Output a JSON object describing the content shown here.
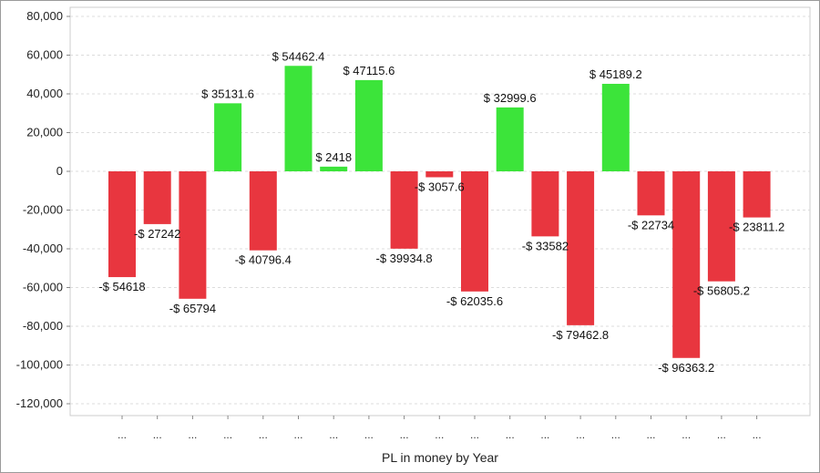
{
  "chart_data": {
    "type": "bar",
    "title": "",
    "xlabel": "PL in money by Year",
    "ylabel": "",
    "ylim": [
      -120000,
      80000
    ],
    "yticks": [
      80000,
      60000,
      40000,
      20000,
      0,
      -20000,
      -40000,
      -60000,
      -80000,
      -100000,
      -120000
    ],
    "ytick_labels": [
      "80,000",
      "60,000",
      "40,000",
      "20,000",
      "0",
      "-20,000",
      "-40,000",
      "-60,000",
      "-80,000",
      "-100,000",
      "-120,000"
    ],
    "grid": true,
    "categories": [
      "...",
      "...",
      "...",
      "...",
      "...",
      "...",
      "...",
      "...",
      "...",
      "...",
      "...",
      "...",
      "...",
      "...",
      "...",
      "...",
      "...",
      "...",
      "..."
    ],
    "values": [
      -54618,
      -27242,
      -65794,
      35131.6,
      -40796.4,
      54462.4,
      2418,
      47115.6,
      -39934.8,
      -3057.6,
      -62035.6,
      32999.6,
      -33582,
      -79462.8,
      45189.2,
      -22734,
      -96363.2,
      -56805.2,
      -23811.2
    ],
    "data_labels": [
      "-$ 54618",
      "-$ 27242",
      "-$ 65794",
      "$ 35131.6",
      "-$ 40796.4",
      "$ 54462.4",
      "$ 2418",
      "$ 47115.6",
      "-$ 39934.8",
      "-$ 3057.6",
      "-$ 62035.6",
      "$ 32999.6",
      "-$ 33582",
      "-$ 79462.8",
      "$ 45189.2",
      "-$ 22734",
      "-$ 96363.2",
      "-$ 56805.2",
      "-$ 23811.2"
    ],
    "colors": {
      "positive": "#3ce43a",
      "negative": "#e8363f"
    }
  }
}
